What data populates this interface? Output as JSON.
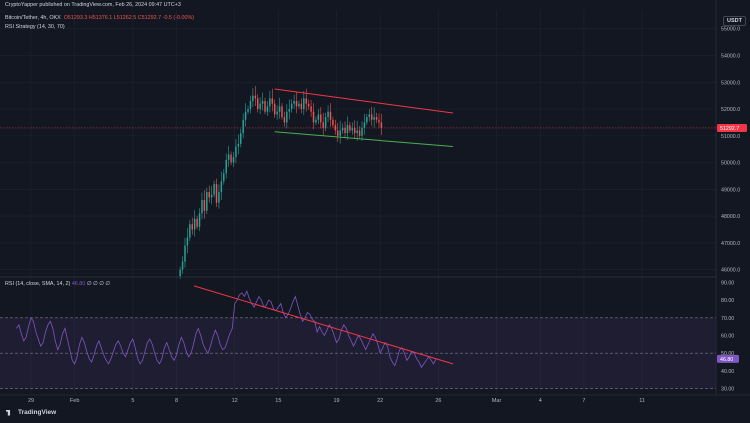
{
  "header": {
    "publisher_line": "CryptoYapper published on TradingView.com, Feb 26, 2024 09:47 UTC+3",
    "symbol": "Bitcoin/Tether, 4h, OKX",
    "ohlc": "O51293.3 H51376.1 L51262.5 C51292.7 -0.5 (-0.00%)",
    "indicator": "RSI Strategy (14, 30, 70)"
  },
  "currency_badge": "USDT",
  "brand": "TradingView",
  "colors": {
    "background": "#131722",
    "up_candle": "#26a69a",
    "down_candle": "#ef5350",
    "resistance_line": "#f23645",
    "support_line": "#4caf50",
    "rsi_line": "#7e57c2",
    "rsi_band": "#7e57c2",
    "rsi_trendline": "#f23645",
    "price_label_bg": "#f23645",
    "rsi_label_bg": "#7e57c2"
  },
  "chart_data": [
    {
      "type": "candlestick",
      "symbol": "Bitcoin/Tether",
      "interval": "4h",
      "exchange": "OKX",
      "ylim": [
        45800,
        55700
      ],
      "y_ticks": [
        "55000.0",
        "54000.0",
        "53000.0",
        "52000.0",
        "51000.0",
        "50000.0",
        "49000.0",
        "48000.0",
        "47000.0",
        "46000.0"
      ],
      "y_tick_values": [
        55000,
        54000,
        53000,
        52000,
        51000,
        50000,
        49000,
        48000,
        47000,
        46000
      ],
      "last_price": 51292.7,
      "last_price_label": "51292.7",
      "x_ticks": [
        "29",
        "Feb",
        "5",
        "8",
        "12",
        "15",
        "19",
        "22",
        "26",
        "Mar",
        "4",
        "7",
        "11"
      ],
      "x_tick_days": [
        -2,
        1,
        5,
        8,
        12,
        15,
        19,
        22,
        26,
        30,
        33,
        36,
        40
      ],
      "candles_start_day": 8.25,
      "candles_per_day": 6,
      "closes": [
        46000,
        46300,
        46900,
        47200,
        47700,
        47500,
        47900,
        47600,
        48100,
        48600,
        48200,
        48900,
        48700,
        48800,
        49200,
        48500,
        48900,
        49300,
        49600,
        50100,
        50300,
        50000,
        50200,
        50600,
        50700,
        51100,
        51600,
        51900,
        52000,
        52300,
        52500,
        52400,
        52000,
        52200,
        52300,
        51900,
        52100,
        52400,
        52200,
        51800,
        51900,
        52100,
        51700,
        51500,
        51900,
        52000,
        52200,
        52300,
        52100,
        52200,
        52000,
        52400,
        52200,
        52100,
        51900,
        51500,
        51600,
        51800,
        51500,
        51300,
        51700,
        51900,
        51600,
        51400,
        51200,
        51000,
        51200,
        51300,
        51100,
        51400,
        51200,
        51300,
        51100,
        51200,
        51000,
        51300,
        51500,
        51700,
        51800,
        51600,
        51700,
        51600,
        51500,
        51292.7
      ],
      "resistance_line": {
        "from_day": 14.75,
        "from_price": 52750,
        "to_day": 27.0,
        "to_price": 51850
      },
      "support_line": {
        "from_day": 14.75,
        "from_price": 51150,
        "to_day": 27.0,
        "to_price": 50600
      }
    },
    {
      "type": "line",
      "name": "RSI",
      "legend": "RSI (14, close, SMA, 14, 2)",
      "legend_value": "46.80",
      "legend_extra": "∅ ∅ ∅ ∅",
      "ylim": [
        27,
        93
      ],
      "y_ticks": [
        "90.00",
        "80.00",
        "70.00",
        "60.00",
        "50.00",
        "40.00",
        "30.00"
      ],
      "y_tick_values": [
        90,
        80,
        70,
        60,
        50,
        40,
        30
      ],
      "bands": [
        30,
        50,
        70
      ],
      "x_start_day": -3,
      "points_per_day": 6,
      "values": [
        64,
        66,
        61,
        57,
        59,
        65,
        70,
        68,
        62,
        58,
        54,
        56,
        62,
        66,
        68,
        64,
        57,
        52,
        55,
        61,
        64,
        58,
        52,
        46,
        44,
        48,
        55,
        59,
        56,
        51,
        47,
        45,
        49,
        54,
        57,
        53,
        49,
        46,
        44,
        47,
        51,
        55,
        57,
        54,
        50,
        48,
        52,
        56,
        58,
        53,
        47,
        44,
        46,
        51,
        56,
        58,
        55,
        50,
        46,
        44,
        47,
        53,
        56,
        52,
        48,
        46,
        49,
        55,
        59,
        56,
        51,
        48,
        50,
        55,
        61,
        64,
        60,
        55,
        52,
        50,
        54,
        59,
        63,
        60,
        55,
        52,
        53,
        57,
        61,
        64,
        78,
        80,
        83,
        84,
        82,
        85,
        81,
        78,
        76,
        79,
        82,
        80,
        76,
        77,
        80,
        79,
        75,
        74,
        76,
        78,
        73,
        70,
        72,
        75,
        79,
        82,
        77,
        72,
        68,
        70,
        73,
        72,
        69,
        68,
        62,
        65,
        62,
        60,
        63,
        66,
        64,
        60,
        56,
        58,
        63,
        66,
        64,
        60,
        57,
        54,
        57,
        60,
        58,
        55,
        52,
        55,
        58,
        61,
        59,
        55,
        50,
        53,
        56,
        54,
        48,
        45,
        43,
        47,
        52,
        53,
        50,
        46,
        48,
        51,
        50,
        47,
        45,
        42,
        44,
        46,
        48,
        46,
        44,
        46.8
      ],
      "trendline": {
        "from_day": 9.2,
        "from_value": 88,
        "to_day": 27.0,
        "to_value": 44
      }
    }
  ]
}
